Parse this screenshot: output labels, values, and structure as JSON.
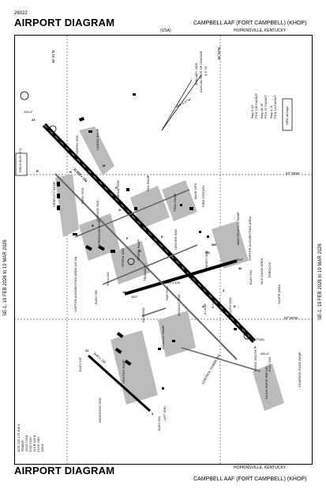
{
  "header": {
    "doc_number": "26022",
    "title": "AIRPORT DIAGRAM",
    "agency": "(USA)",
    "airport": "CAMPBELL AAF (FORT CAMPBELL)  (KHOP)",
    "city": "HOPKINSVILLE, KENTUCKY"
  },
  "footer": {
    "title": "AIRPORT DIAGRAM",
    "city": "HOPKINSVILLE, KENTUCKY",
    "airport": "CAMPBELL AAF (FORT CAMPBELL)  (KHOP)"
  },
  "side_stamp": {
    "left": "SE-1, 19 FEB 2026 to 19 MAR 2026",
    "right": "SE-1, 19 FEB 2026 to 19 MAR 2026"
  },
  "comms": [
    "ATIS 125.175 308.4",
    "TOWER",
    "120.9 278.8",
    "GND CON",
    "121.8 246.8",
    "CLNC DEL",
    "138.8"
  ],
  "coords": {
    "lat_top": "36°41'N",
    "lat_top_right": "36°40'N",
    "lon_mid": "87°29'W",
    "lon_bottom": "87°30'W"
  },
  "variation": {
    "title": "JANUARY 2025",
    "line2": "ANNUAL RATE OF CHANGE",
    "line3": "0.1° W",
    "var": "VAR 4.9° W"
  },
  "weight_bearing": [
    "Rwy 5-23",
    "PCN 130 F/A/W/T",
    "Rwy 18-36",
    "PCN 37 F/A/W/T",
    "Rwy 3-21",
    "PCN 14 F/A/W/T"
  ],
  "hirl_note": "HIRL all rwys",
  "field_elev": "FIELD ELEV 571",
  "runways": {
    "main": {
      "ends": [
        "5",
        "23"
      ],
      "dims": "11,825 x 150",
      "heading_ne": "050.0°",
      "heading_sw": "230.0°",
      "elev_ne": "ELEV 554",
      "elev_sw": "ELEV 549"
    },
    "crosswind": {
      "ends": [
        "18",
        "36"
      ],
      "dims": "4500 x 100",
      "heading_e": "003°",
      "heading_w": "183°",
      "elev_w": "ELEV 561",
      "elev_e": "ELEV 554",
      "w_dist": "200 x 100"
    },
    "lift": {
      "ends": [
        "3",
        "21"
      ],
      "dims": "2440 x 100",
      "elev_nw": "ELEV 547",
      "elev_se": "ELEV 550"
    }
  },
  "area_labels": [
    "NORTH SOD",
    "CARGO RAMP",
    "SERENITY RAMP",
    "FURY SOD",
    "CHANCE SOD",
    "TERMINAL SOD",
    "PAX RAMP",
    "TRAN RAMP",
    "BASE OPS",
    "FIRE STATION",
    "FREEDOM RAMP",
    "STORM SOD",
    "STORM RAMP",
    "CENTER SOD",
    "MAINTENANCE RAMP",
    "COPTER AUGMENTING AREA",
    "TRIANGLE",
    "PAR SOD",
    "RESET SOD",
    "COPTER AUGMENTING AREA (16-34)",
    "DIAMOND",
    "ASSAULT SOD",
    "ASSAULT RAMP",
    "A LANE",
    "B LANE",
    "SOUTH SOD",
    "OLD OASIS AREA",
    "SLOPE AREA",
    "DESTINY RAMP",
    "CONTROL TOWER 694",
    "OASIS SOUTH",
    "COMPASS ROSE RAMP",
    "OASIS RAPID REFUEL",
    "WINDSOCK SOD",
    "LIFT SOD",
    "TORCH PZ",
    "FUEL"
  ],
  "taxiway_letters": [
    "N",
    "M",
    "H",
    "G",
    "E",
    "F",
    "D",
    "C",
    "B",
    "A",
    "K",
    "J",
    "W1",
    "W2",
    "F1",
    "R"
  ]
}
